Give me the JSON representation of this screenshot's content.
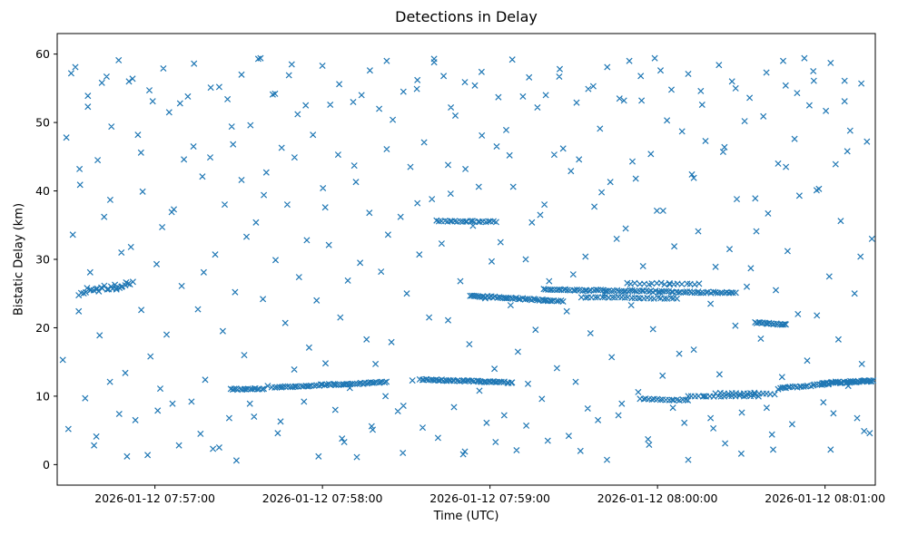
{
  "chart_data": {
    "type": "scatter",
    "title": "Detections in Delay",
    "xlabel": "Time (UTC)",
    "ylabel": "Bistatic Delay (km)",
    "marker": "x",
    "marker_color": "#1f77b4",
    "grid": false,
    "legend": "none",
    "x_encoding": "seconds after 2026-01-12 07:56:00 UTC",
    "xlim": [
      25,
      318
    ],
    "ylim": [
      -3,
      63
    ],
    "x_ticks": [
      {
        "t": 60,
        "label": "2026-01-12 07:57:00"
      },
      {
        "t": 120,
        "label": "2026-01-12 07:58:00"
      },
      {
        "t": 180,
        "label": "2026-01-12 07:59:00"
      },
      {
        "t": 240,
        "label": "2026-01-12 08:00:00"
      },
      {
        "t": 300,
        "label": "2026-01-12 08:01:00"
      }
    ],
    "y_ticks": [
      {
        "v": 0,
        "label": "0"
      },
      {
        "v": 10,
        "label": "10"
      },
      {
        "v": 20,
        "label": "20"
      },
      {
        "v": 30,
        "label": "30"
      },
      {
        "v": 40,
        "label": "40"
      },
      {
        "v": 50,
        "label": "50"
      },
      {
        "v": 60,
        "label": "60"
      }
    ],
    "tracks": [
      {
        "t0": 33,
        "t1": 52,
        "y0": 25.2,
        "y1": 26.3,
        "n": 28,
        "jitter": 0.45
      },
      {
        "t0": 87,
        "t1": 99,
        "y0": 11.0,
        "y1": 11.1,
        "n": 18,
        "jitter": 0.08
      },
      {
        "t0": 102,
        "t1": 117,
        "y0": 11.3,
        "y1": 11.5,
        "n": 20,
        "jitter": 0.08
      },
      {
        "t0": 118,
        "t1": 143,
        "y0": 11.6,
        "y1": 12.05,
        "n": 36,
        "jitter": 0.1
      },
      {
        "t0": 155,
        "t1": 188,
        "y0": 12.45,
        "y1": 12.0,
        "n": 52,
        "jitter": 0.09
      },
      {
        "t0": 161,
        "t1": 182,
        "y0": 35.6,
        "y1": 35.5,
        "n": 24,
        "jitter": 0.07
      },
      {
        "t0": 173,
        "t1": 200,
        "y0": 24.7,
        "y1": 24.0,
        "n": 40,
        "jitter": 0.1
      },
      {
        "t0": 199,
        "t1": 206,
        "y0": 24.0,
        "y1": 23.9,
        "n": 10,
        "jitter": 0.08
      },
      {
        "t0": 199,
        "t1": 268,
        "y0": 25.6,
        "y1": 25.1,
        "n": 85,
        "jitter": 0.1
      },
      {
        "t0": 213,
        "t1": 247,
        "y0": 24.5,
        "y1": 24.3,
        "n": 30,
        "jitter": 0.09
      },
      {
        "t0": 229,
        "t1": 255,
        "y0": 26.5,
        "y1": 26.3,
        "n": 18,
        "jitter": 0.15
      },
      {
        "t0": 234,
        "t1": 251,
        "y0": 9.6,
        "y1": 9.4,
        "n": 18,
        "jitter": 0.08
      },
      {
        "t0": 251,
        "t1": 276,
        "y0": 10.0,
        "y1": 10.0,
        "n": 20,
        "jitter": 0.07
      },
      {
        "t0": 261,
        "t1": 282,
        "y0": 10.45,
        "y1": 10.3,
        "n": 16,
        "jitter": 0.07
      },
      {
        "t0": 275,
        "t1": 286,
        "y0": 20.75,
        "y1": 20.5,
        "n": 20,
        "jitter": 0.09
      },
      {
        "t0": 283,
        "t1": 301,
        "y0": 11.1,
        "y1": 11.8,
        "n": 24,
        "jitter": 0.1
      },
      {
        "t0": 299,
        "t1": 317,
        "y0": 11.9,
        "y1": 12.25,
        "n": 44,
        "jitter": 0.12
      }
    ],
    "noise_points": [
      [
        27,
        15.3
      ],
      [
        28.3,
        47.8
      ],
      [
        29,
        5.2
      ],
      [
        30.6,
        33.6
      ],
      [
        31.5,
        58.1
      ],
      [
        32.7,
        22.4
      ],
      [
        33.2,
        40.9
      ],
      [
        35,
        9.7
      ],
      [
        36,
        52.3
      ],
      [
        36.8,
        28.1
      ],
      [
        38.2,
        2.8
      ],
      [
        39.5,
        44.5
      ],
      [
        40.2,
        18.9
      ],
      [
        41.8,
        36.2
      ],
      [
        42.7,
        56.7
      ],
      [
        43.9,
        12.1
      ],
      [
        44.4,
        49.4
      ],
      [
        46.2,
        25.6
      ],
      [
        47.2,
        7.4
      ],
      [
        48,
        31
      ],
      [
        49.4,
        13.4
      ],
      [
        50.7,
        56
      ],
      [
        51.4,
        31.8
      ],
      [
        53,
        6.5
      ],
      [
        53.9,
        48.2
      ],
      [
        55.1,
        22.6
      ],
      [
        55.6,
        39.9
      ],
      [
        57.4,
        1.4
      ],
      [
        58.4,
        15.8
      ],
      [
        59.2,
        53.1
      ],
      [
        60.6,
        29.3
      ],
      [
        61.9,
        11.1
      ],
      [
        62.6,
        34.7
      ],
      [
        64.2,
        19
      ],
      [
        65.1,
        51.5
      ],
      [
        66.3,
        8.9
      ],
      [
        66.8,
        37.3
      ],
      [
        68.6,
        2.8
      ],
      [
        69.6,
        26.1
      ],
      [
        70.4,
        44.6
      ],
      [
        71.8,
        53.8
      ],
      [
        73.1,
        9.2
      ],
      [
        73.8,
        46.5
      ],
      [
        75.4,
        22.7
      ],
      [
        76.3,
        4.5
      ],
      [
        77.5,
        28.1
      ],
      [
        78,
        12.4
      ],
      [
        79.8,
        44.9
      ],
      [
        80.8,
        2.3
      ],
      [
        81.6,
        30.7
      ],
      [
        83,
        55.2
      ],
      [
        84.3,
        19.5
      ],
      [
        85,
        38
      ],
      [
        86.6,
        6.8
      ],
      [
        87.5,
        49.4
      ],
      [
        88.7,
        25.2
      ],
      [
        89.2,
        0.6
      ],
      [
        91,
        41.6
      ],
      [
        92,
        16
      ],
      [
        92.8,
        33.3
      ],
      [
        94.2,
        49.6
      ],
      [
        95.5,
        7
      ],
      [
        96.2,
        35.4
      ],
      [
        97.8,
        59.4
      ],
      [
        98.7,
        24.2
      ],
      [
        99.9,
        42.7
      ],
      [
        100.4,
        11.5
      ],
      [
        102.2,
        54.1
      ],
      [
        103.2,
        29.9
      ],
      [
        104,
        4.6
      ],
      [
        105.4,
        46.3
      ],
      [
        106.7,
        20.7
      ],
      [
        107.4,
        38
      ],
      [
        109,
        58.5
      ],
      [
        109.9,
        13.9
      ],
      [
        111.1,
        51.2
      ],
      [
        111.6,
        27.4
      ],
      [
        113.4,
        9.2
      ],
      [
        114.4,
        32.8
      ],
      [
        115.2,
        17.1
      ],
      [
        116.6,
        48.2
      ],
      [
        117.9,
        24
      ],
      [
        118.6,
        1.2
      ],
      [
        120.2,
        40.4
      ],
      [
        121.1,
        14.8
      ],
      [
        122.3,
        32.1
      ],
      [
        122.8,
        52.6
      ],
      [
        124.6,
        8
      ],
      [
        125.6,
        45.3
      ],
      [
        126.4,
        21.5
      ],
      [
        127.8,
        3.3
      ],
      [
        129.1,
        26.9
      ],
      [
        129.8,
        11.2
      ],
      [
        131.4,
        43.7
      ],
      [
        132.3,
        1.1
      ],
      [
        133.5,
        29.5
      ],
      [
        134,
        54
      ],
      [
        135.8,
        18.3
      ],
      [
        136.8,
        36.8
      ],
      [
        137.6,
        5.6
      ],
      [
        139,
        14.7
      ],
      [
        140.3,
        52
      ],
      [
        141,
        28.2
      ],
      [
        142.6,
        10
      ],
      [
        143.5,
        33.6
      ],
      [
        144.7,
        17.9
      ],
      [
        145.2,
        50.4
      ],
      [
        147,
        7.8
      ],
      [
        148,
        36.2
      ],
      [
        148.8,
        1.7
      ],
      [
        150.2,
        25
      ],
      [
        151.5,
        43.5
      ],
      [
        152.2,
        12.3
      ],
      [
        153.8,
        54.9
      ],
      [
        154.7,
        30.7
      ],
      [
        155.9,
        5.4
      ],
      [
        156.4,
        47.1
      ],
      [
        158.2,
        21.5
      ],
      [
        159.2,
        38.8
      ],
      [
        160,
        59.3
      ],
      [
        161.4,
        3.9
      ],
      [
        162.7,
        32.3
      ],
      [
        163.4,
        56.8
      ],
      [
        165,
        21.1
      ],
      [
        165.9,
        39.6
      ],
      [
        167.1,
        8.4
      ],
      [
        167.6,
        51
      ],
      [
        169.4,
        26.8
      ],
      [
        170.4,
        1.5
      ],
      [
        171.2,
        43.2
      ],
      [
        172.6,
        17.6
      ],
      [
        173.9,
        34.9
      ],
      [
        174.6,
        55.4
      ],
      [
        176.2,
        10.8
      ],
      [
        177.1,
        48.1
      ],
      [
        178.3,
        24.3
      ],
      [
        178.8,
        6.1
      ],
      [
        180.6,
        29.7
      ],
      [
        181.6,
        14
      ],
      [
        182.4,
        46.5
      ],
      [
        183.8,
        32.5
      ],
      [
        185.1,
        7.2
      ],
      [
        185.8,
        48.9
      ],
      [
        187.4,
        23.3
      ],
      [
        188.3,
        40.6
      ],
      [
        189.5,
        2.1
      ],
      [
        190,
        16.5
      ],
      [
        191.8,
        53.8
      ],
      [
        192.8,
        30
      ],
      [
        193.6,
        11.8
      ],
      [
        195,
        35.4
      ],
      [
        196.3,
        19.7
      ],
      [
        197,
        52.2
      ],
      [
        198.6,
        9.6
      ],
      [
        199.5,
        38
      ],
      [
        200.7,
        3.5
      ],
      [
        201.2,
        26.8
      ],
      [
        203,
        45.3
      ],
      [
        204,
        14.1
      ],
      [
        204.8,
        56.7
      ],
      [
        206.2,
        46.2
      ],
      [
        207.5,
        22.4
      ],
      [
        208.2,
        4.2
      ],
      [
        209.8,
        27.8
      ],
      [
        210.7,
        12.1
      ],
      [
        211.9,
        44.6
      ],
      [
        212.4,
        2
      ],
      [
        214.2,
        30.4
      ],
      [
        215.2,
        54.9
      ],
      [
        216,
        19.2
      ],
      [
        217.4,
        37.7
      ],
      [
        218.7,
        6.5
      ],
      [
        219.4,
        49.1
      ],
      [
        221,
        24.9
      ],
      [
        221.9,
        0.7
      ],
      [
        223.1,
        41.3
      ],
      [
        223.6,
        15.7
      ],
      [
        225.4,
        33
      ],
      [
        226.4,
        53.5
      ],
      [
        227.2,
        8.9
      ],
      [
        228.6,
        34.5
      ],
      [
        229.9,
        59
      ],
      [
        230.6,
        23.3
      ],
      [
        232.2,
        41.8
      ],
      [
        233.1,
        10.6
      ],
      [
        234.3,
        53.2
      ],
      [
        234.8,
        29
      ],
      [
        236.6,
        3.7
      ],
      [
        237.6,
        45.4
      ],
      [
        238.4,
        19.8
      ],
      [
        239.8,
        37.1
      ],
      [
        241.1,
        57.6
      ],
      [
        241.8,
        13
      ],
      [
        243.4,
        50.3
      ],
      [
        244.3,
        26.5
      ],
      [
        245.5,
        8.3
      ],
      [
        246,
        31.9
      ],
      [
        247.8,
        16.2
      ],
      [
        248.8,
        48.7
      ],
      [
        249.6,
        6.1
      ],
      [
        251,
        0.7
      ],
      [
        252.3,
        42.4
      ],
      [
        253,
        16.8
      ],
      [
        254.6,
        34.1
      ],
      [
        255.5,
        54.6
      ],
      [
        256.7,
        10
      ],
      [
        257.2,
        47.3
      ],
      [
        259,
        23.5
      ],
      [
        260,
        5.3
      ],
      [
        260.8,
        28.9
      ],
      [
        262.2,
        13.2
      ],
      [
        263.5,
        45.7
      ],
      [
        264.2,
        3.1
      ],
      [
        265.8,
        31.5
      ],
      [
        266.7,
        56
      ],
      [
        267.9,
        20.3
      ],
      [
        268.4,
        38.8
      ],
      [
        270.2,
        7.6
      ],
      [
        271.2,
        50.2
      ],
      [
        272,
        26
      ],
      [
        273.4,
        28.7
      ],
      [
        274.7,
        10.5
      ],
      [
        275.4,
        34.1
      ],
      [
        277,
        18.4
      ],
      [
        277.9,
        50.9
      ],
      [
        279.1,
        8.3
      ],
      [
        279.6,
        36.7
      ],
      [
        281.4,
        2.2
      ],
      [
        282.4,
        25.5
      ],
      [
        283.2,
        44
      ],
      [
        284.6,
        12.8
      ],
      [
        285.9,
        55.4
      ],
      [
        286.6,
        31.2
      ],
      [
        288.2,
        5.9
      ],
      [
        289.1,
        47.6
      ],
      [
        290.3,
        22
      ],
      [
        290.8,
        39.3
      ],
      [
        292.6,
        59.4
      ],
      [
        293.6,
        15.2
      ],
      [
        294.4,
        52.5
      ],
      [
        295.8,
        57.5
      ],
      [
        297.1,
        21.8
      ],
      [
        297.8,
        40.3
      ],
      [
        299.4,
        9.1
      ],
      [
        300.3,
        51.7
      ],
      [
        301.5,
        27.5
      ],
      [
        302,
        2.2
      ],
      [
        303.8,
        43.9
      ],
      [
        304.8,
        18.3
      ],
      [
        305.6,
        35.6
      ],
      [
        307,
        56.1
      ],
      [
        308.3,
        11.5
      ],
      [
        309,
        48.8
      ],
      [
        310.6,
        25
      ],
      [
        311.5,
        6.8
      ],
      [
        312.7,
        30.4
      ],
      [
        313.2,
        14.7
      ],
      [
        315,
        47.2
      ],
      [
        316,
        4.6
      ],
      [
        316.8,
        33
      ],
      [
        30,
        57.2
      ],
      [
        36,
        53.9
      ],
      [
        41,
        55.8
      ],
      [
        47,
        59.1
      ],
      [
        52,
        56.4
      ],
      [
        58,
        54.7
      ],
      [
        63,
        57.9
      ],
      [
        69,
        52.8
      ],
      [
        74,
        58.6
      ],
      [
        80,
        55.1
      ],
      [
        86,
        53.4
      ],
      [
        91,
        57
      ],
      [
        97,
        59.3
      ],
      [
        103,
        54.2
      ],
      [
        108,
        56.9
      ],
      [
        114,
        52.5
      ],
      [
        120,
        58.3
      ],
      [
        126,
        55.6
      ],
      [
        131,
        53
      ],
      [
        137,
        57.6
      ],
      [
        143,
        59
      ],
      [
        149,
        54.5
      ],
      [
        154,
        56.2
      ],
      [
        160,
        58.8
      ],
      [
        166,
        52.2
      ],
      [
        171,
        55.9
      ],
      [
        177,
        57.4
      ],
      [
        183,
        53.7
      ],
      [
        188,
        59.2
      ],
      [
        194,
        56.6
      ],
      [
        200,
        54
      ],
      [
        205,
        57.8
      ],
      [
        211,
        52.9
      ],
      [
        217,
        55.3
      ],
      [
        222,
        58.1
      ],
      [
        228,
        53.2
      ],
      [
        234,
        56.8
      ],
      [
        239,
        59.4
      ],
      [
        245,
        54.8
      ],
      [
        251,
        57.1
      ],
      [
        256,
        52.6
      ],
      [
        262,
        58.4
      ],
      [
        268,
        55
      ],
      [
        273,
        53.6
      ],
      [
        279,
        57.3
      ],
      [
        285,
        59
      ],
      [
        290,
        54.3
      ],
      [
        296,
        56.1
      ],
      [
        302,
        58.7
      ],
      [
        307,
        53.1
      ],
      [
        313,
        55.7
      ],
      [
        33,
        43.2
      ],
      [
        44,
        38.7
      ],
      [
        55,
        45.6
      ],
      [
        66,
        36.9
      ],
      [
        77,
        42.1
      ],
      [
        88,
        46.8
      ],
      [
        99,
        39.4
      ],
      [
        110,
        44.9
      ],
      [
        121,
        37.6
      ],
      [
        132,
        41.3
      ],
      [
        143,
        46.1
      ],
      [
        154,
        38.2
      ],
      [
        165,
        43.8
      ],
      [
        176,
        40.6
      ],
      [
        187,
        45.2
      ],
      [
        198,
        36.5
      ],
      [
        209,
        42.9
      ],
      [
        220,
        39.8
      ],
      [
        231,
        44.3
      ],
      [
        242,
        37.1
      ],
      [
        253,
        41.9
      ],
      [
        264,
        46.4
      ],
      [
        275,
        38.9
      ],
      [
        286,
        43.5
      ],
      [
        297,
        40.1
      ],
      [
        308,
        45.8
      ],
      [
        39,
        4.1
      ],
      [
        61,
        7.9
      ],
      [
        83,
        2.5
      ],
      [
        105,
        6.3
      ],
      [
        127,
        3.8
      ],
      [
        149,
        8.6
      ],
      [
        171,
        1.9
      ],
      [
        193,
        5.7
      ],
      [
        215,
        8.2
      ],
      [
        237,
        2.9
      ],
      [
        259,
        6.8
      ],
      [
        281,
        4.4
      ],
      [
        303,
        7.5
      ],
      [
        50,
        1.2
      ],
      [
        94,
        8.9
      ],
      [
        138,
        5.1
      ],
      [
        182,
        3.3
      ],
      [
        226,
        7.2
      ],
      [
        270,
        1.6
      ],
      [
        314,
        4.9
      ]
    ]
  }
}
